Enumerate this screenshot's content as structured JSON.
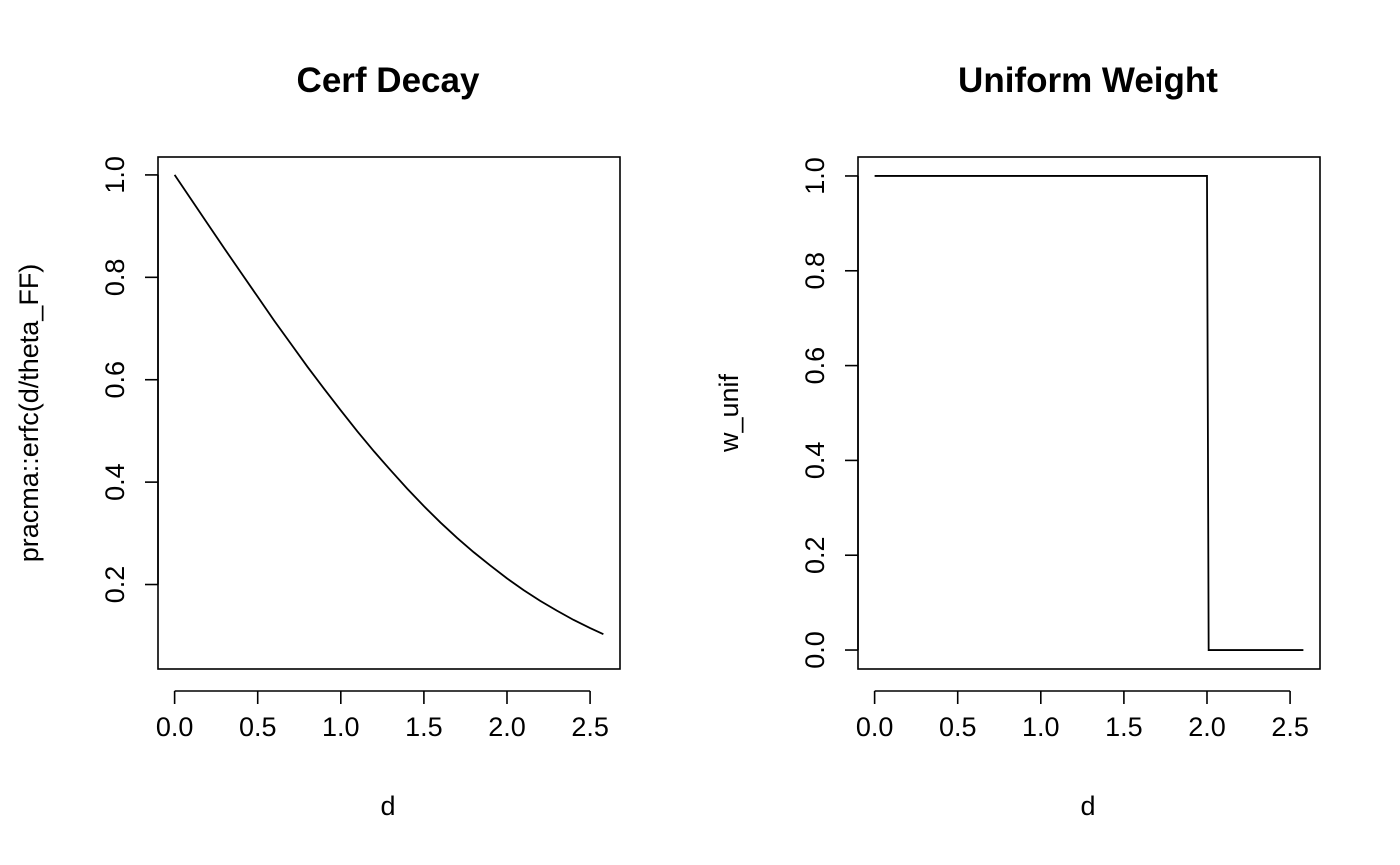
{
  "chart_data": [
    {
      "type": "line",
      "title": "Cerf Decay",
      "xlabel": "d",
      "ylabel": "pracma::erfc(d/theta_FF)",
      "xlim": [
        -0.1,
        2.68
      ],
      "ylim": [
        0.035,
        1.035
      ],
      "xticks": [
        0.0,
        0.5,
        1.0,
        1.5,
        2.0,
        2.5
      ],
      "xtick_labels": [
        "0.0",
        "0.5",
        "1.0",
        "1.5",
        "2.0",
        "2.5"
      ],
      "yticks": [
        0.2,
        0.4,
        0.6,
        0.8,
        1.0
      ],
      "ytick_labels": [
        "0.2",
        "0.4",
        "0.6",
        "0.8",
        "1.0"
      ],
      "grid": false,
      "series": [
        {
          "x": [
            0.0,
            0.1,
            0.2,
            0.3,
            0.4,
            0.5,
            0.6,
            0.7,
            0.8,
            0.9,
            1.0,
            1.1,
            1.2,
            1.3,
            1.4,
            1.5,
            1.6,
            1.7,
            1.8,
            1.9,
            2.0,
            2.1,
            2.2,
            2.3,
            2.4,
            2.5,
            2.58
          ],
          "y": [
            1.0,
            0.952,
            0.904,
            0.856,
            0.809,
            0.762,
            0.715,
            0.67,
            0.625,
            0.582,
            0.54,
            0.499,
            0.46,
            0.423,
            0.387,
            0.353,
            0.321,
            0.291,
            0.263,
            0.237,
            0.212,
            0.189,
            0.168,
            0.149,
            0.131,
            0.115,
            0.103
          ]
        }
      ]
    },
    {
      "type": "line",
      "title": "Uniform Weight",
      "xlabel": "d",
      "ylabel": "w_unif",
      "xlim": [
        -0.1,
        2.68
      ],
      "ylim": [
        -0.04,
        1.04
      ],
      "xticks": [
        0.0,
        0.5,
        1.0,
        1.5,
        2.0,
        2.5
      ],
      "xtick_labels": [
        "0.0",
        "0.5",
        "1.0",
        "1.5",
        "2.0",
        "2.5"
      ],
      "yticks": [
        0.0,
        0.2,
        0.4,
        0.6,
        0.8,
        1.0
      ],
      "ytick_labels": [
        "0.0",
        "0.2",
        "0.4",
        "0.6",
        "0.8",
        "1.0"
      ],
      "grid": false,
      "series": [
        {
          "x": [
            0.0,
            2.0,
            2.01,
            2.58
          ],
          "y": [
            1.0,
            1.0,
            0.0,
            0.0
          ]
        }
      ]
    }
  ]
}
